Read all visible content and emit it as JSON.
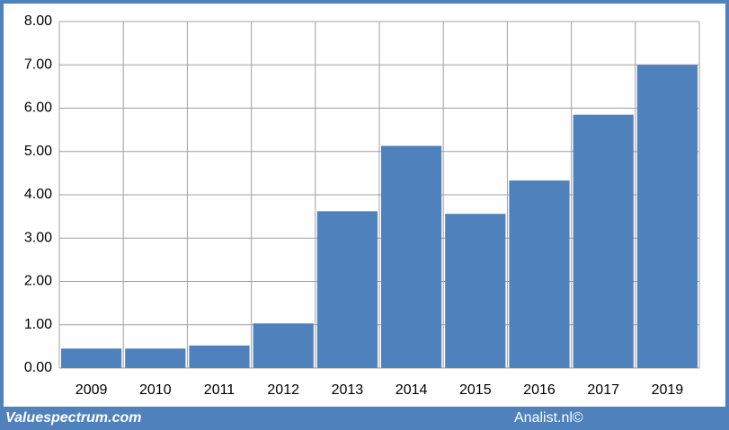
{
  "chart_data": {
    "type": "bar",
    "categories": [
      "2009",
      "2010",
      "2011",
      "2012",
      "2013",
      "2014",
      "2015",
      "2016",
      "2017",
      "2019"
    ],
    "values": [
      0.45,
      0.45,
      0.52,
      1.03,
      3.62,
      5.13,
      3.56,
      4.33,
      5.85,
      7.0
    ],
    "color": "#4f81bd",
    "ylim": [
      0,
      8
    ],
    "yticks": [
      {
        "value": 0,
        "label": "0.00"
      },
      {
        "value": 1,
        "label": "1.00"
      },
      {
        "value": 2,
        "label": "2.00"
      },
      {
        "value": 3,
        "label": "3.00"
      },
      {
        "value": 4,
        "label": "4.00"
      },
      {
        "value": 5,
        "label": "5.00"
      },
      {
        "value": 6,
        "label": "6.00"
      },
      {
        "value": 7,
        "label": "7.00"
      },
      {
        "value": 8,
        "label": "8.00"
      }
    ],
    "grid": true
  },
  "footer": {
    "left": "Valuespectrum.com",
    "right": "Analist.nl©"
  }
}
